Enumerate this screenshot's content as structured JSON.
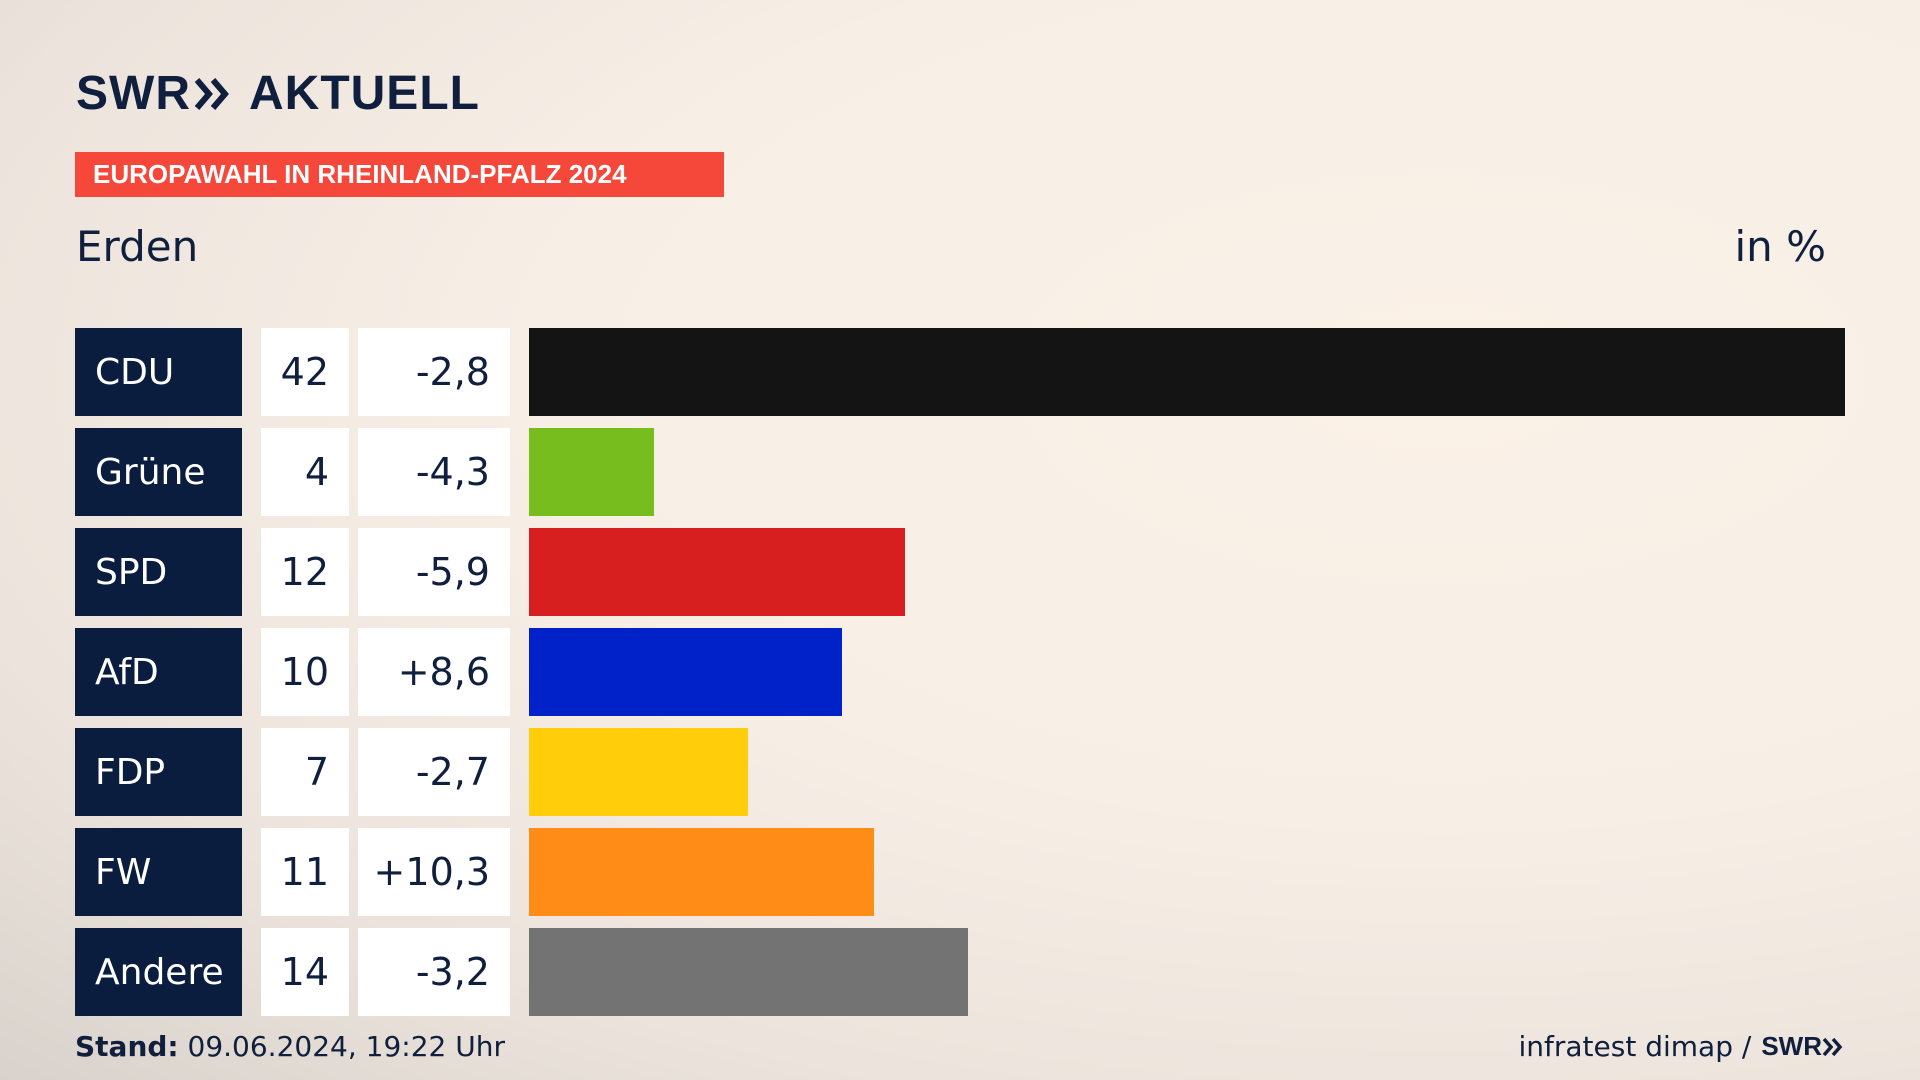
{
  "brand": {
    "name": "SWR",
    "suffix": "AKTUELL"
  },
  "tag": "EUROPAWAHL IN RHEINLAND-PFALZ 2024",
  "region": "Erden",
  "unit": "in %",
  "colors": {
    "navy": "#0b1d3e",
    "accent": "#f5483a"
  },
  "chart_data": {
    "type": "bar",
    "orientation": "horizontal",
    "categories": [
      "CDU",
      "Grüne",
      "SPD",
      "AfD",
      "FDP",
      "FW",
      "Andere"
    ],
    "values": [
      42,
      4,
      12,
      10,
      7,
      11,
      14
    ],
    "changes": [
      "-2,8",
      "-4,3",
      "-5,9",
      "+8,6",
      "-2,7",
      "+10,3",
      "-3,2"
    ],
    "bar_colors": [
      "#141414",
      "#78bd1e",
      "#d71f1f",
      "#0022c8",
      "#ffcd0a",
      "#ff8c16",
      "#737373"
    ],
    "xlim": [
      0,
      42
    ],
    "grid": false
  },
  "footer": {
    "stand_label": "Stand:",
    "stand_value": " 09.06.2024, 19:22 Uhr",
    "source": "infratest dimap /",
    "source_logo": "SWR"
  }
}
